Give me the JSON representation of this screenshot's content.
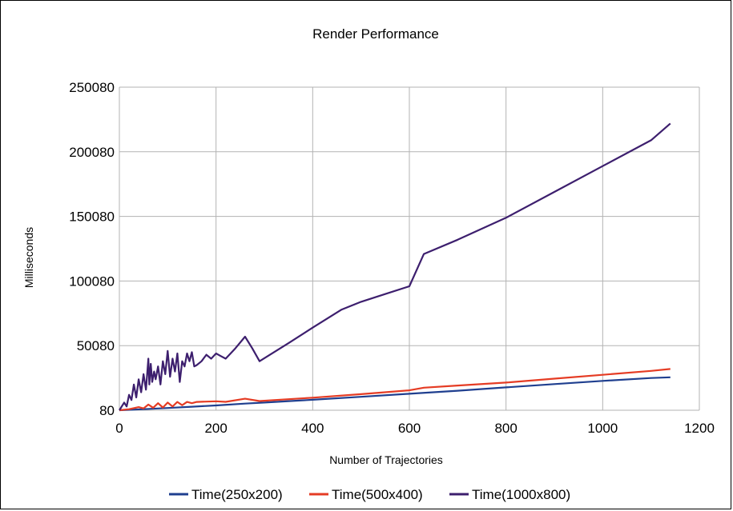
{
  "chart_data": {
    "type": "line",
    "title": "Render Performance",
    "xlabel": "Number of Trajectories",
    "ylabel": "Milliseconds",
    "xlim": [
      0,
      1200
    ],
    "ylim": [
      80,
      250080
    ],
    "xticks": [
      0,
      200,
      400,
      600,
      800,
      1000,
      1200
    ],
    "yticks": [
      80,
      50080,
      100080,
      150080,
      200080,
      250080
    ],
    "grid": true,
    "legend": "bottom",
    "series": [
      {
        "name": "Time(250x200)",
        "color": "#1f3f8f",
        "x": [
          0,
          50,
          100,
          150,
          200,
          260,
          300,
          400,
          500,
          600,
          700,
          800,
          900,
          1000,
          1100,
          1140
        ],
        "y": [
          80,
          900,
          1800,
          2800,
          3800,
          5200,
          6000,
          8200,
          10500,
          12800,
          15200,
          17800,
          20300,
          22800,
          25000,
          25600
        ]
      },
      {
        "name": "Time(500x400)",
        "color": "#e53c24",
        "x": [
          0,
          20,
          40,
          50,
          60,
          70,
          80,
          90,
          100,
          110,
          120,
          130,
          140,
          150,
          160,
          200,
          220,
          260,
          290,
          400,
          500,
          600,
          630,
          700,
          800,
          900,
          1000,
          1100,
          1140
        ],
        "y": [
          80,
          900,
          2500,
          1500,
          4500,
          2000,
          5500,
          2200,
          6000,
          3000,
          6500,
          4000,
          6500,
          5500,
          6500,
          7000,
          6600,
          9000,
          7200,
          9800,
          12500,
          15500,
          17500,
          19200,
          21500,
          24500,
          27500,
          30500,
          32000
        ]
      },
      {
        "name": "Time(1000x800)",
        "color": "#3d1f6e",
        "x": [
          0,
          10,
          15,
          20,
          25,
          30,
          35,
          40,
          45,
          50,
          55,
          60,
          62,
          65,
          68,
          72,
          75,
          80,
          85,
          90,
          95,
          100,
          105,
          110,
          115,
          120,
          125,
          130,
          135,
          140,
          145,
          150,
          155,
          160,
          170,
          180,
          190,
          200,
          210,
          220,
          240,
          260,
          275,
          290,
          350,
          400,
          460,
          500,
          550,
          600,
          630,
          700,
          800,
          900,
          1000,
          1100,
          1140
        ],
        "y": [
          80,
          6000,
          3000,
          12000,
          8000,
          20000,
          10000,
          24000,
          14000,
          28000,
          16000,
          40000,
          20000,
          36000,
          22000,
          30000,
          24000,
          34000,
          20000,
          38000,
          28000,
          46000,
          26000,
          40000,
          30000,
          44000,
          22000,
          38000,
          34000,
          44000,
          38000,
          45000,
          34000,
          35000,
          38000,
          43000,
          40000,
          44000,
          42000,
          40000,
          48000,
          57000,
          48000,
          38000,
          52000,
          64000,
          78000,
          84000,
          90000,
          96000,
          121000,
          132000,
          149000,
          169000,
          189000,
          209000,
          222000
        ]
      }
    ]
  }
}
